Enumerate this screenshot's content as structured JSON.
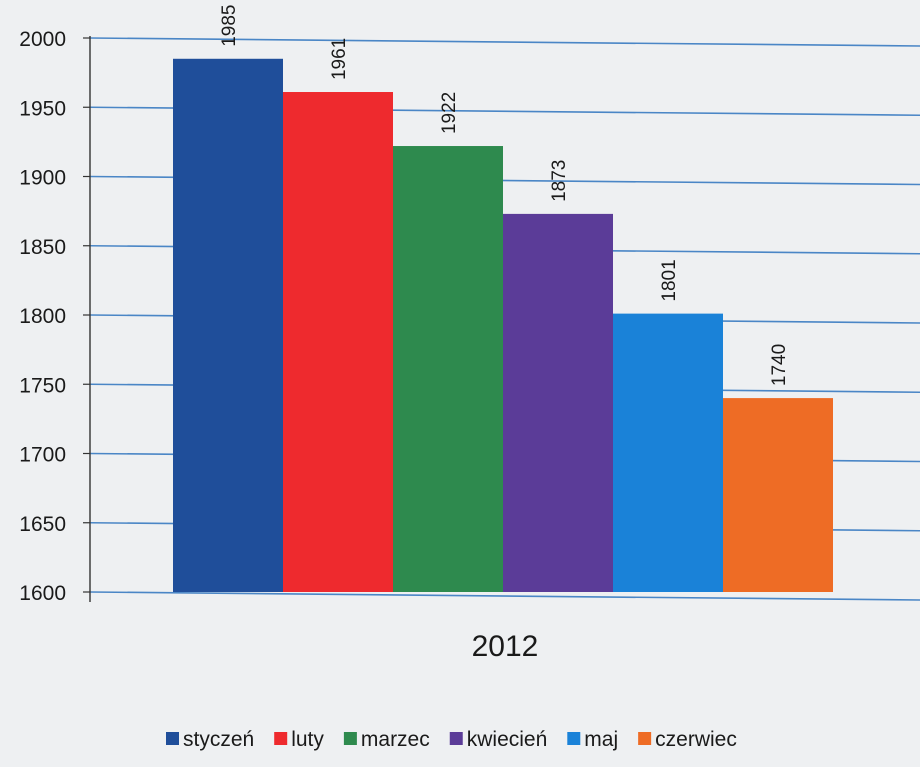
{
  "chart_data": {
    "type": "bar",
    "title": "",
    "xlabel": "",
    "ylabel": "",
    "categories": [
      "2012"
    ],
    "category_label": "2012",
    "ylim": [
      1600,
      2000
    ],
    "ytick_step": 50,
    "yticks": [
      "1600",
      "1650",
      "1700",
      "1750",
      "1800",
      "1850",
      "1900",
      "1950",
      "2000"
    ],
    "grid": true,
    "legend_position": "bottom",
    "series": [
      {
        "name": "styczeń",
        "value": 1985,
        "color": "#1f4e9a"
      },
      {
        "name": "luty",
        "value": 1961,
        "color": "#ee2a2e"
      },
      {
        "name": "marzec",
        "value": 1922,
        "color": "#2e8a4e"
      },
      {
        "name": "kwiecień",
        "value": 1873,
        "color": "#5b3c98"
      },
      {
        "name": "maj",
        "value": 1801,
        "color": "#1a82d8"
      },
      {
        "name": "czerwiec",
        "value": 1740,
        "color": "#ee6c25"
      }
    ],
    "gridline_color": "#4a86c6"
  }
}
